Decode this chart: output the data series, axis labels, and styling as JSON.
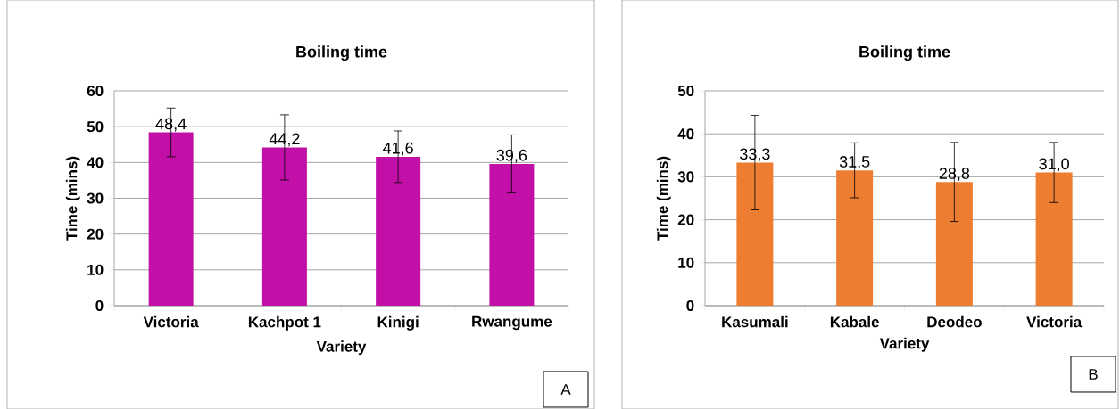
{
  "chart_data": [
    {
      "type": "bar",
      "title": "Boiling time",
      "xlabel": "Variety",
      "ylabel": "Time (mins)",
      "categories": [
        "Victoria",
        "Kachpot 1",
        "Kinigi",
        "Rwangume"
      ],
      "values": [
        48.4,
        44.2,
        41.6,
        39.6
      ],
      "value_labels": [
        "48,4",
        "44,2",
        "41,6",
        "39,6"
      ],
      "errors": [
        6.8,
        9.1,
        7.2,
        8.1
      ],
      "color": "#c20fa8",
      "ylim": [
        0,
        60
      ],
      "yticks": [
        0,
        10,
        20,
        30,
        40,
        50,
        60
      ],
      "grid": "y",
      "annotations": [
        "A"
      ]
    },
    {
      "type": "bar",
      "title": "Boiling time",
      "xlabel": "Variety",
      "ylabel": "Time (mins)",
      "categories": [
        "Kasumali",
        "Kabale",
        "Deodeo",
        "Victoria"
      ],
      "values": [
        33.3,
        31.5,
        28.8,
        31.0
      ],
      "value_labels": [
        "33,3",
        "31,5",
        "28,8",
        "31,0"
      ],
      "errors": [
        11.0,
        6.4,
        9.2,
        7.0
      ],
      "color": "#ed7d31",
      "ylim": [
        0,
        50
      ],
      "yticks": [
        0,
        10,
        20,
        30,
        40,
        50
      ],
      "grid": "y",
      "annotations": [
        "B"
      ]
    }
  ]
}
